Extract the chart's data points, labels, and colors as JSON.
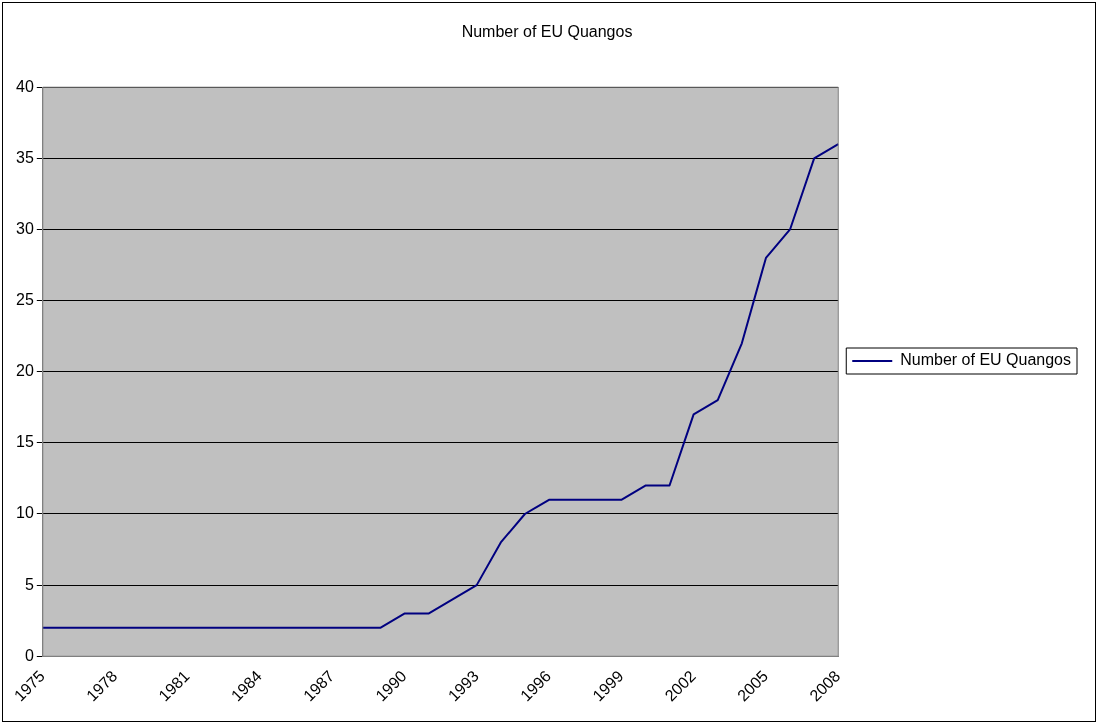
{
  "chart_data": {
    "type": "line",
    "title": "Number of EU Quangos",
    "categories": [
      "1975",
      null,
      null,
      "1978",
      null,
      null,
      "1981",
      null,
      null,
      "1984",
      null,
      null,
      "1987",
      null,
      null,
      "1990",
      null,
      null,
      "1993",
      null,
      null,
      "1996",
      null,
      null,
      "1999",
      null,
      null,
      "2002",
      null,
      null,
      "2005",
      null,
      null,
      "2008"
    ],
    "series": [
      {
        "name": "Number of EU Quangos",
        "color": "#000080",
        "values": [
          2,
          2,
          2,
          2,
          2,
          2,
          2,
          2,
          2,
          2,
          2,
          2,
          2,
          2,
          2,
          3,
          3,
          4,
          5,
          8,
          10,
          11,
          11,
          11,
          11,
          12,
          12,
          17,
          18,
          22,
          28,
          30,
          35,
          36
        ]
      }
    ],
    "ylim": [
      0,
      40
    ],
    "yticks": [
      0,
      5,
      10,
      15,
      20,
      25,
      30,
      35,
      40
    ],
    "grid": "y",
    "legend": "right",
    "marker": "none",
    "line_style": "solid"
  }
}
